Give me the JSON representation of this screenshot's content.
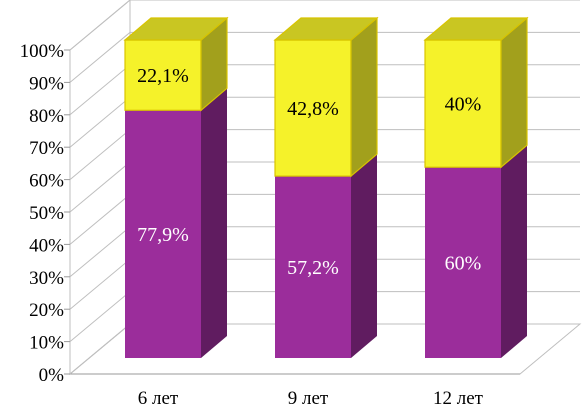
{
  "chart_data": {
    "type": "bar",
    "stacked": true,
    "percent_stacked": true,
    "three_d": true,
    "categories": [
      "6 лет",
      "9 лет",
      "12 лет"
    ],
    "series": [
      {
        "values": [
          77.9,
          57.2,
          60
        ],
        "labels": [
          "77,9%",
          "57,2%",
          "60%"
        ],
        "color": "#9b2d9b"
      },
      {
        "values": [
          22.1,
          42.8,
          40
        ],
        "labels": [
          "22,1%",
          "42,8%",
          "40%"
        ],
        "color": "#f5f22a"
      }
    ],
    "y_ticks": [
      "0%",
      "10%",
      "20%",
      "30%",
      "40%",
      "50%",
      "60%",
      "70%",
      "80%",
      "90%",
      "100%"
    ],
    "ylim": [
      0,
      100
    ],
    "grid": true,
    "legend": "none"
  }
}
